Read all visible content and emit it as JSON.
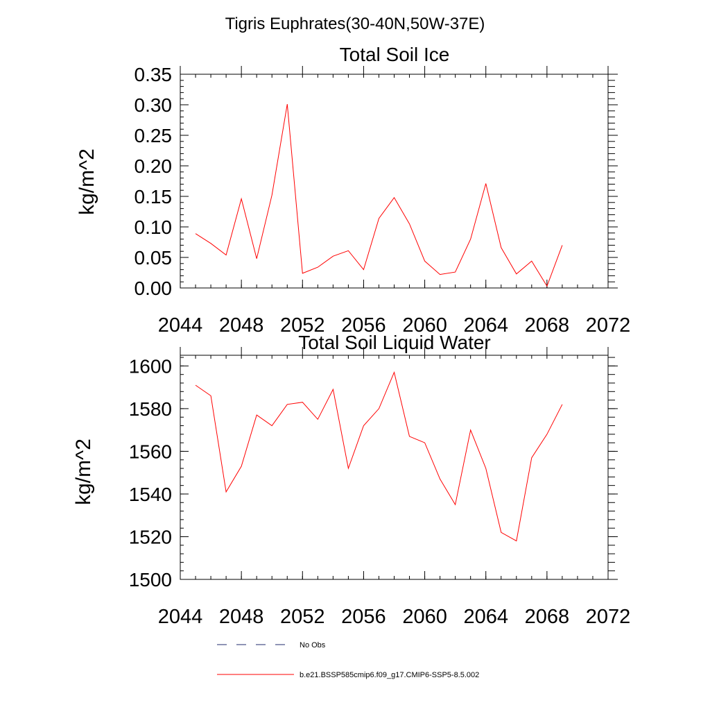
{
  "figure": {
    "suptitle": "Tigris Euphrates(30-40N,50W-37E)"
  },
  "chart_data": [
    {
      "type": "line",
      "title": "Total Soil Ice",
      "ylabel": "kg/m^2",
      "xlabel": "",
      "xlim": [
        2044,
        2072
      ],
      "ylim": [
        0,
        0.35
      ],
      "xticks": [
        2044,
        2048,
        2052,
        2056,
        2060,
        2064,
        2068,
        2072
      ],
      "xtick_labels": [
        "2044",
        "2048",
        "2052",
        "2056",
        "2060",
        "2064",
        "2068",
        "2072"
      ],
      "yticks": [
        0,
        0.05,
        0.1,
        0.15,
        0.2,
        0.25,
        0.3,
        0.35
      ],
      "ytick_labels": [
        "0.00",
        "0.05",
        "0.10",
        "0.15",
        "0.20",
        "0.25",
        "0.30",
        "0.35"
      ],
      "y_minor_step": 0.01,
      "x_minor_step": 1,
      "series": [
        {
          "name": "b.e21.BSSP585cmip6.f09_g17.CMIP6-SSP5-8.5.002",
          "color": "#ff0000",
          "x": [
            2045,
            2046,
            2047,
            2048,
            2049,
            2050,
            2051,
            2052,
            2053,
            2054,
            2055,
            2056,
            2057,
            2058,
            2059,
            2060,
            2061,
            2062,
            2063,
            2064,
            2065,
            2066,
            2067,
            2068,
            2069
          ],
          "y": [
            0.089,
            0.073,
            0.054,
            0.146,
            0.048,
            0.152,
            0.301,
            0.024,
            0.034,
            0.052,
            0.061,
            0.03,
            0.114,
            0.148,
            0.105,
            0.044,
            0.022,
            0.026,
            0.08,
            0.171,
            0.066,
            0.023,
            0.044,
            0.003,
            0.07
          ]
        }
      ]
    },
    {
      "type": "line",
      "title": "Total Soil Liquid Water",
      "ylabel": "kg/m^2",
      "xlabel": "",
      "xlim": [
        2044,
        2072
      ],
      "ylim": [
        1500,
        1605
      ],
      "xticks": [
        2044,
        2048,
        2052,
        2056,
        2060,
        2064,
        2068,
        2072
      ],
      "xtick_labels": [
        "2044",
        "2048",
        "2052",
        "2056",
        "2060",
        "2064",
        "2068",
        "2072"
      ],
      "yticks": [
        1500,
        1520,
        1540,
        1560,
        1580,
        1600
      ],
      "ytick_labels": [
        "1500",
        "1520",
        "1540",
        "1560",
        "1580",
        "1600"
      ],
      "y_minor_step": 4,
      "x_minor_step": 1,
      "series": [
        {
          "name": "b.e21.BSSP585cmip6.f09_g17.CMIP6-SSP5-8.5.002",
          "color": "#ff0000",
          "x": [
            2045,
            2046,
            2047,
            2048,
            2049,
            2050,
            2051,
            2052,
            2053,
            2054,
            2055,
            2056,
            2057,
            2058,
            2059,
            2060,
            2061,
            2062,
            2063,
            2064,
            2065,
            2066,
            2067,
            2068,
            2069
          ],
          "y": [
            1591,
            1586,
            1541,
            1553,
            1577,
            1572,
            1582,
            1583,
            1575,
            1589,
            1552,
            1572,
            1580,
            1597,
            1567,
            1564,
            1547,
            1535,
            1570,
            1552,
            1522,
            1518,
            1557,
            1568,
            1582
          ]
        }
      ]
    }
  ],
  "legend": {
    "items": [
      {
        "label": "No Obs",
        "style": "dashed",
        "color": "#1f2a6b"
      },
      {
        "label": "b.e21.BSSP585cmip6.f09_g17.CMIP6-SSP5-8.5.002",
        "style": "solid",
        "color": "#ff0000"
      }
    ]
  }
}
